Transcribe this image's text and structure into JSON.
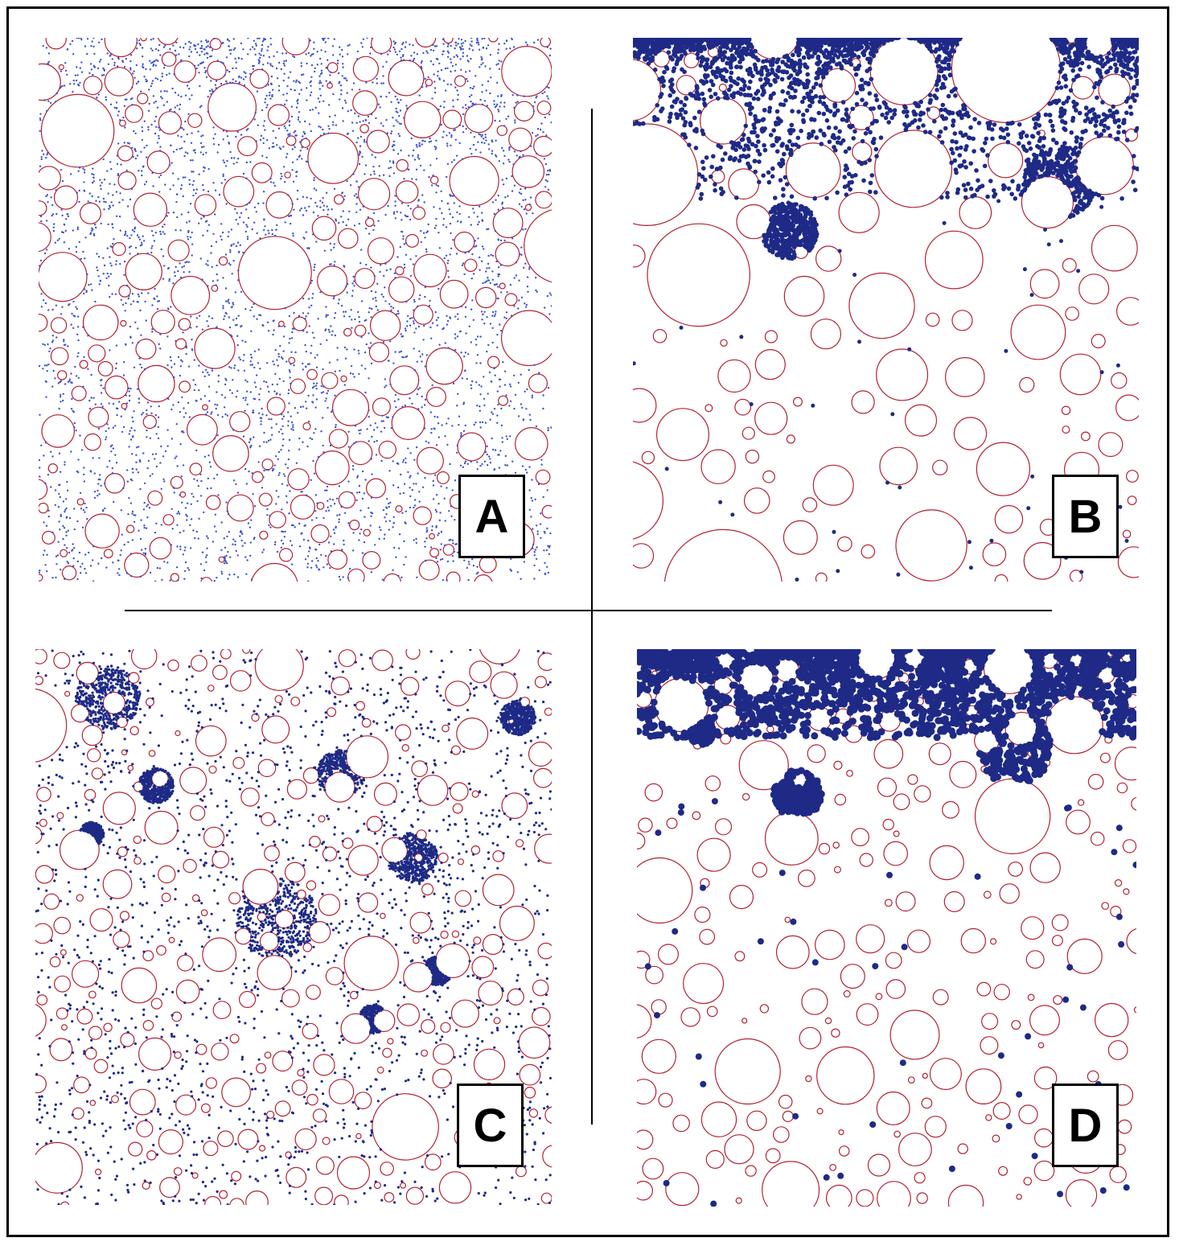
{
  "figure": {
    "panels": [
      {
        "id": "a",
        "label": "A",
        "particle_distribution": "dispersed-fine"
      },
      {
        "id": "b",
        "label": "B",
        "particle_distribution": "top-layer-clustered"
      },
      {
        "id": "c",
        "label": "C",
        "particle_distribution": "dispersed-clustered"
      },
      {
        "id": "d",
        "label": "D",
        "particle_distribution": "top-layer-dense"
      }
    ]
  },
  "colors": {
    "aggregate_outline": "#b22233",
    "particle_fill": "#1e2a86",
    "particle_fill_light": "#3d55cc",
    "background": "#ffffff",
    "frame": "#000000"
  },
  "icons": [
    "circle-aggregate",
    "particle-dot"
  ]
}
